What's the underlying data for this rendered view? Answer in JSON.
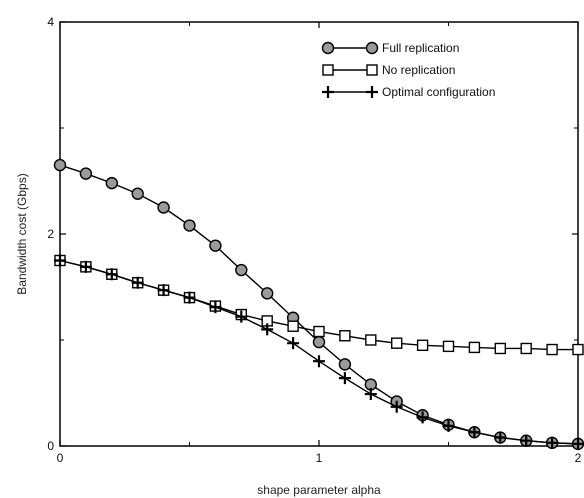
{
  "chart_data": {
    "type": "line",
    "title": "",
    "xlabel": "shape parameter alpha",
    "ylabel": "Bandwidth cost (Gbps)",
    "xlim": [
      0,
      2
    ],
    "ylim": [
      0,
      4
    ],
    "x_ticks": [
      0,
      1,
      2
    ],
    "y_ticks": [
      0,
      2,
      4
    ],
    "grid": false,
    "legend_position": "top-right",
    "x": [
      0,
      0.1,
      0.2,
      0.3,
      0.4,
      0.5,
      0.6,
      0.7,
      0.8,
      0.9,
      1.0,
      1.1,
      1.2,
      1.3,
      1.4,
      1.5,
      1.6,
      1.7,
      1.8,
      1.9,
      2.0
    ],
    "series": [
      {
        "name": "Full replication",
        "marker": "circle",
        "color": "#000000",
        "marker_fill": "#9a9a9a",
        "values": [
          2.65,
          2.57,
          2.48,
          2.38,
          2.25,
          2.08,
          1.89,
          1.66,
          1.44,
          1.21,
          0.98,
          0.77,
          0.58,
          0.42,
          0.29,
          0.2,
          0.13,
          0.08,
          0.05,
          0.03,
          0.02
        ]
      },
      {
        "name": "No replication",
        "marker": "square",
        "color": "#000000",
        "marker_fill": "#ffffff",
        "values": [
          1.75,
          1.69,
          1.62,
          1.54,
          1.47,
          1.4,
          1.32,
          1.24,
          1.18,
          1.13,
          1.08,
          1.04,
          1.0,
          0.97,
          0.95,
          0.94,
          0.93,
          0.92,
          0.92,
          0.91,
          0.91
        ]
      },
      {
        "name": "Optimal configuration",
        "marker": "plus",
        "color": "#000000",
        "marker_fill": "#000000",
        "values": [
          1.75,
          1.69,
          1.62,
          1.54,
          1.47,
          1.4,
          1.31,
          1.22,
          1.1,
          0.97,
          0.8,
          0.64,
          0.49,
          0.37,
          0.27,
          0.19,
          0.13,
          0.08,
          0.05,
          0.03,
          0.02
        ]
      }
    ]
  }
}
